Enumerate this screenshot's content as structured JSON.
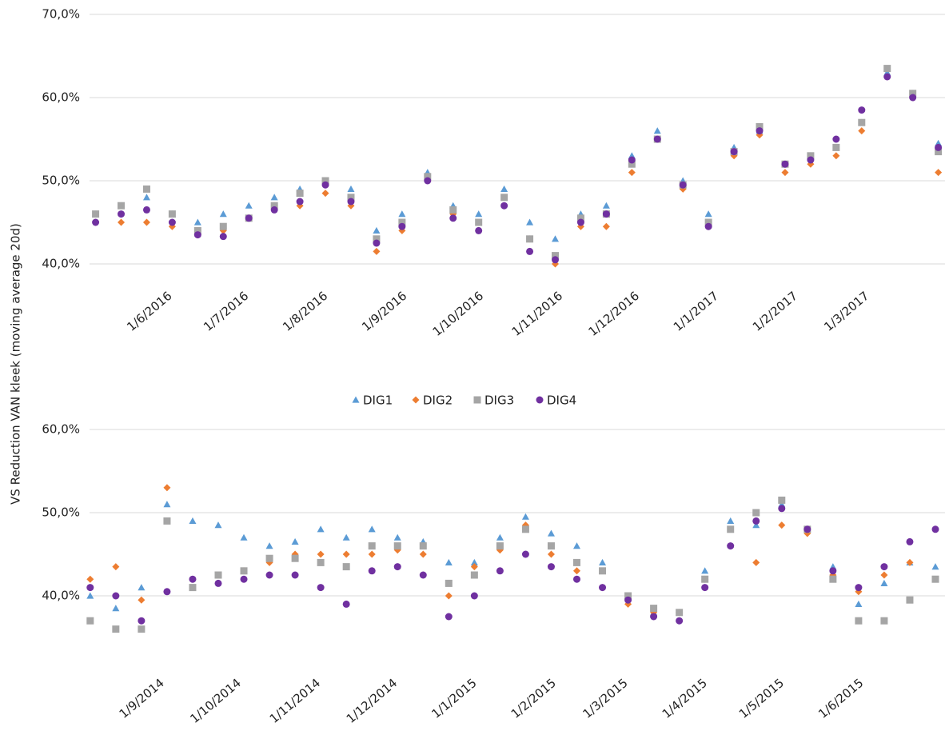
{
  "chart_data": [
    {
      "type": "scatter",
      "ylabel": "VS Reduction VAN kleek (moving average 20d)",
      "x": [
        "2016-05-04",
        "2016-05-14",
        "2016-05-24",
        "2016-06-03",
        "2016-06-13",
        "2016-06-23",
        "2016-07-03",
        "2016-07-13",
        "2016-07-23",
        "2016-08-02",
        "2016-08-12",
        "2016-08-22",
        "2016-09-01",
        "2016-09-11",
        "2016-09-21",
        "2016-10-01",
        "2016-10-11",
        "2016-10-21",
        "2016-10-31",
        "2016-11-10",
        "2016-11-20",
        "2016-11-30",
        "2016-12-10",
        "2016-12-20",
        "2016-12-30",
        "2017-01-09",
        "2017-01-19",
        "2017-01-29",
        "2017-02-08",
        "2017-02-18",
        "2017-02-28",
        "2017-03-10",
        "2017-03-20",
        "2017-03-30"
      ],
      "xlim": [
        "2016-05-01",
        "2017-04-01"
      ],
      "xticks": [
        {
          "value": "2016-06-01",
          "label": "1/6/2016"
        },
        {
          "value": "2016-07-01",
          "label": "1/7/2016"
        },
        {
          "value": "2016-08-01",
          "label": "1/8/2016"
        },
        {
          "value": "2016-09-01",
          "label": "1/9/2016"
        },
        {
          "value": "2016-10-01",
          "label": "1/10/2016"
        },
        {
          "value": "2016-11-01",
          "label": "1/11/2016"
        },
        {
          "value": "2016-12-01",
          "label": "1/12/2016"
        },
        {
          "value": "2017-01-01",
          "label": "1/1/2017"
        },
        {
          "value": "2017-02-01",
          "label": "1/2/2017"
        },
        {
          "value": "2017-03-01",
          "label": "1/3/2017"
        }
      ],
      "ylim": [
        40,
        70
      ],
      "yticks": [
        {
          "value": 40,
          "label": "40,0%"
        },
        {
          "value": 50,
          "label": "50,0%"
        },
        {
          "value": 60,
          "label": "60,0%"
        },
        {
          "value": 70,
          "label": "70,0%"
        }
      ],
      "grid": true,
      "series": [
        {
          "name": "DIG1",
          "color": "#5b9bd5",
          "marker": "triangle",
          "values": [
            46,
            47,
            48,
            46,
            45,
            46,
            47,
            48,
            49,
            50,
            49,
            44,
            46,
            51,
            47,
            46,
            49,
            45,
            43,
            46,
            47,
            53,
            56,
            50,
            46,
            54,
            56,
            52,
            53,
            54,
            57,
            63,
            60.5,
            54.5
          ]
        },
        {
          "name": "DIG2",
          "color": "#ed7d31",
          "marker": "diamond",
          "values": [
            45,
            45,
            45,
            44.5,
            43.5,
            44,
            45.5,
            47,
            47,
            48.5,
            47,
            41.5,
            44,
            50,
            46,
            44,
            47,
            43,
            40,
            44.5,
            44.5,
            51,
            55,
            49,
            44.5,
            53,
            55.5,
            51,
            52,
            53,
            56,
            62.5,
            60,
            51
          ]
        },
        {
          "name": "DIG3",
          "color": "#a5a5a5",
          "marker": "square",
          "values": [
            46,
            47,
            49,
            46,
            44,
            44.5,
            45.5,
            47,
            48.5,
            50,
            48,
            43,
            45,
            50.5,
            46.5,
            45,
            48,
            43,
            41,
            45.5,
            46,
            52,
            55,
            49.5,
            45,
            53.5,
            56.5,
            52,
            53,
            54,
            57,
            63.5,
            60.5,
            53.5
          ]
        },
        {
          "name": "DIG4",
          "color": "#7030a0",
          "marker": "circle",
          "values": [
            45,
            46,
            46.5,
            45,
            43.5,
            43.3,
            45.5,
            46.5,
            47.5,
            49.5,
            47.5,
            42.5,
            44.5,
            50,
            45.5,
            44,
            47,
            41.5,
            40.5,
            45,
            46,
            52.5,
            55,
            49.5,
            44.5,
            53.5,
            56,
            52,
            52.5,
            55,
            58.5,
            62.5,
            60,
            54
          ]
        }
      ]
    },
    {
      "type": "scatter",
      "x": [
        "2014-08-05",
        "2014-08-15",
        "2014-08-25",
        "2014-09-04",
        "2014-09-14",
        "2014-09-24",
        "2014-10-04",
        "2014-10-14",
        "2014-10-24",
        "2014-11-03",
        "2014-11-13",
        "2014-11-23",
        "2014-12-03",
        "2014-12-13",
        "2014-12-23",
        "2015-01-02",
        "2015-01-12",
        "2015-01-22",
        "2015-02-01",
        "2015-02-11",
        "2015-02-21",
        "2015-03-03",
        "2015-03-13",
        "2015-03-23",
        "2015-04-02",
        "2015-04-12",
        "2015-04-22",
        "2015-05-02",
        "2015-05-12",
        "2015-05-22",
        "2015-06-01",
        "2015-06-11",
        "2015-06-21",
        "2015-07-01"
      ],
      "xlim": [
        "2014-08-01",
        "2015-07-01"
      ],
      "xticks": [
        {
          "value": "2014-09-01",
          "label": "1/9/2014"
        },
        {
          "value": "2014-10-01",
          "label": "1/10/2014"
        },
        {
          "value": "2014-11-01",
          "label": "1/11/2014"
        },
        {
          "value": "2014-12-01",
          "label": "1/12/2014"
        },
        {
          "value": "2015-01-01",
          "label": "1/1/2015"
        },
        {
          "value": "2015-02-01",
          "label": "1/2/2015"
        },
        {
          "value": "2015-03-01",
          "label": "1/3/2015"
        },
        {
          "value": "2015-04-01",
          "label": "1/4/2015"
        },
        {
          "value": "2015-05-01",
          "label": "1/5/2015"
        },
        {
          "value": "2015-06-01",
          "label": "1/6/2015"
        }
      ],
      "ylim": [
        40,
        60
      ],
      "yticks": [
        {
          "value": 40,
          "label": "40,0%"
        },
        {
          "value": 50,
          "label": "50,0%"
        },
        {
          "value": 60,
          "label": "60,0%"
        }
      ],
      "grid": true,
      "series": [
        {
          "name": "DIG1",
          "color": "#5b9bd5",
          "marker": "triangle",
          "values": [
            40,
            38.5,
            41,
            51,
            49,
            48.5,
            47,
            46,
            46.5,
            48,
            47,
            48,
            47,
            46.5,
            44,
            44,
            47,
            49.5,
            47.5,
            46,
            44,
            40,
            38,
            38,
            43,
            49,
            48.5,
            51,
            48,
            43.5,
            39,
            41.5,
            44,
            43.5
          ]
        },
        {
          "name": "DIG2",
          "color": "#ed7d31",
          "marker": "diamond",
          "values": [
            42,
            43.5,
            39.5,
            53,
            42,
            42.5,
            43,
            44,
            45,
            45,
            45,
            45,
            45.5,
            45,
            40,
            43.5,
            45.5,
            48.5,
            45,
            43,
            41,
            39,
            38,
            38,
            42,
            46,
            44,
            48.5,
            47.5,
            42.5,
            40.5,
            42.5,
            44,
            48
          ]
        },
        {
          "name": "DIG3",
          "color": "#a5a5a5",
          "marker": "square",
          "values": [
            37,
            36,
            36,
            49,
            41,
            42.5,
            43,
            44.5,
            44.5,
            44,
            43.5,
            46,
            46,
            46,
            41.5,
            42.5,
            46,
            48,
            46,
            44,
            43,
            40,
            38.5,
            38,
            42,
            48,
            50,
            51.5,
            48,
            42,
            37,
            37,
            39.5,
            42
          ]
        },
        {
          "name": "DIG4",
          "color": "#7030a0",
          "marker": "circle",
          "values": [
            41,
            40,
            37,
            40.5,
            42,
            41.5,
            42,
            42.5,
            42.5,
            41,
            39,
            43,
            43.5,
            42.5,
            37.5,
            40,
            43,
            45,
            43.5,
            42,
            41,
            39.5,
            37.5,
            37,
            41,
            46,
            49,
            50.5,
            48,
            43,
            41,
            43.5,
            46.5,
            48
          ]
        }
      ]
    }
  ]
}
